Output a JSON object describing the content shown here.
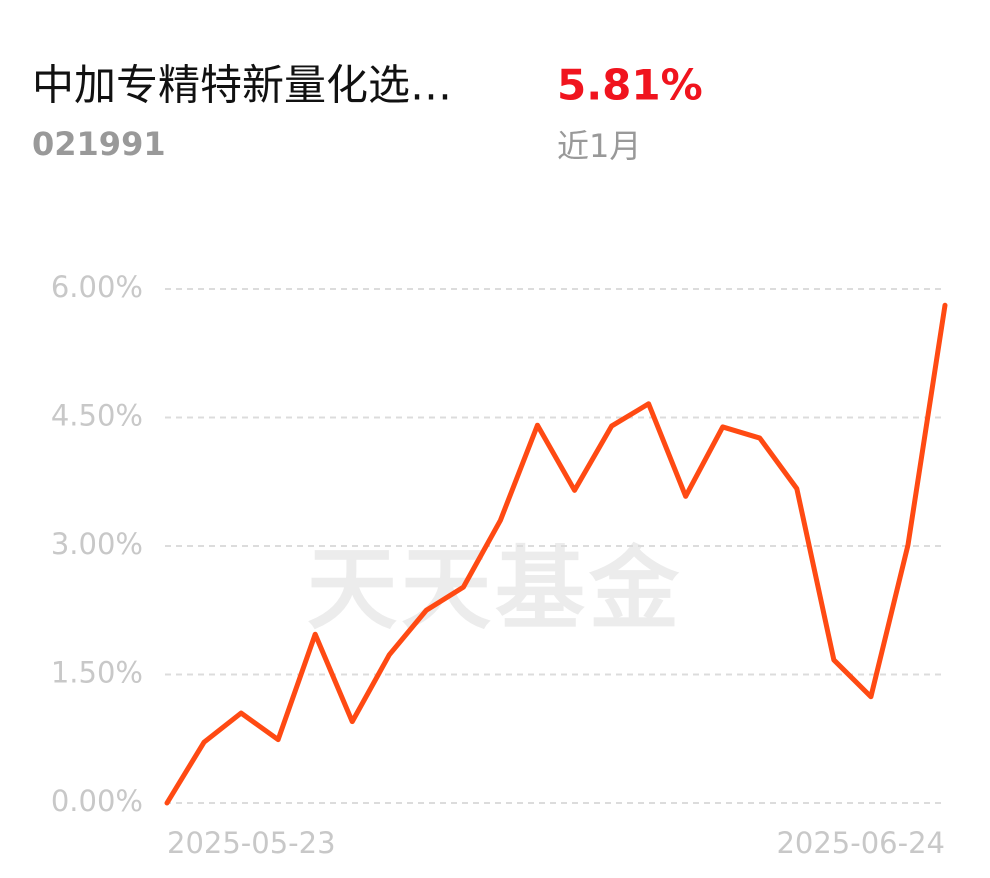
{
  "header": {
    "fund_name": "中加专精特新量化选…",
    "code": "021991",
    "return": "5.81%",
    "period": "近1月"
  },
  "chart_data": {
    "type": "line",
    "watermark": "天天基金",
    "categories": [
      "2025-05-23",
      null,
      null,
      null,
      null,
      null,
      null,
      null,
      null,
      null,
      null,
      null,
      null,
      null,
      null,
      null,
      null,
      null,
      null,
      null,
      null,
      "2025-06-24"
    ],
    "series": [
      {
        "color": "#ff4a13",
        "values": [
          0,
          0.71,
          1.05,
          0.74,
          1.97,
          0.95,
          1.73,
          2.25,
          2.52,
          3.3,
          4.41,
          3.65,
          4.4,
          4.66,
          3.58,
          4.39,
          4.26,
          3.67,
          1.67,
          1.24,
          3.01,
          5.81
        ]
      }
    ],
    "ylim": [
      0,
      6
    ],
    "yticks": [
      {
        "value": 0,
        "label": "0.00%"
      },
      {
        "value": 1.5,
        "label": "1.50%"
      },
      {
        "value": 3,
        "label": "3.00%"
      },
      {
        "value": 4.5,
        "label": "4.50%"
      },
      {
        "value": 6,
        "label": "6.00%"
      }
    ],
    "grid": true
  }
}
